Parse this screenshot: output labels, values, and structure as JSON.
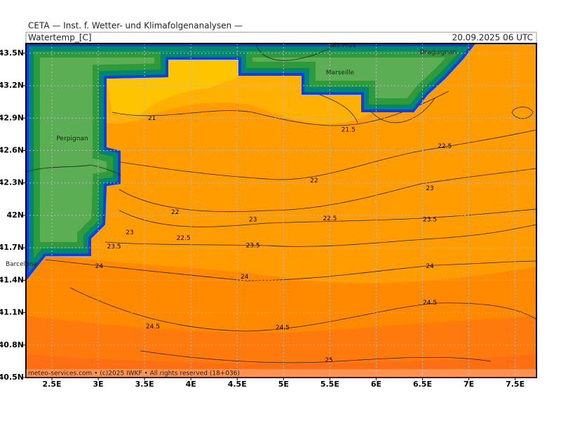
{
  "map": {
    "header": "CETA — Inst. f. Wetter- und Klimafolgenanalysen —",
    "variable": "Watertemp_[C]",
    "valid_time": "20.09.2025 06 UTC",
    "footer": "meteo-services.com • (c)2025 IWKF • All rights reserved (18+036)",
    "xlim": [
      2.22,
      7.73
    ],
    "ylim": [
      40.5,
      43.59
    ],
    "xticks": [
      {
        "value": 2.5,
        "label": "2.5E"
      },
      {
        "value": 3,
        "label": "3E"
      },
      {
        "value": 3.5,
        "label": "3.5E"
      },
      {
        "value": 4,
        "label": "4E"
      },
      {
        "value": 4.5,
        "label": "4.5E"
      },
      {
        "value": 5,
        "label": "5E"
      },
      {
        "value": 5.5,
        "label": "5.5E"
      },
      {
        "value": 6,
        "label": "6E"
      },
      {
        "value": 6.5,
        "label": "6.5E"
      },
      {
        "value": 7,
        "label": "7E"
      },
      {
        "value": 7.5,
        "label": "7.5E"
      }
    ],
    "yticks": [
      {
        "value": 40.5,
        "label": "40.5N"
      },
      {
        "value": 40.8,
        "label": "40.8N"
      },
      {
        "value": 41.1,
        "label": "41.1N"
      },
      {
        "value": 41.4,
        "label": "41.4N"
      },
      {
        "value": 41.7,
        "label": "41.7N"
      },
      {
        "value": 42,
        "label": "42N"
      },
      {
        "value": 42.3,
        "label": "42.3N"
      },
      {
        "value": 42.6,
        "label": "42.6N"
      },
      {
        "value": 42.9,
        "label": "42.9N"
      },
      {
        "value": 43.2,
        "label": "43.2N"
      },
      {
        "value": 43.5,
        "label": "43.5N"
      }
    ],
    "grid": true,
    "contour_labels": [
      {
        "value": 21,
        "lon": 3.58,
        "lat": 42.9
      },
      {
        "value": 21.5,
        "lon": 5.7,
        "lat": 42.79
      },
      {
        "value": 22.5,
        "lon": 6.74,
        "lat": 42.64
      },
      {
        "value": 22,
        "lon": 5.33,
        "lat": 42.32
      },
      {
        "value": 23,
        "lon": 6.58,
        "lat": 42.25
      },
      {
        "value": 22,
        "lon": 3.83,
        "lat": 42.03
      },
      {
        "value": 23,
        "lon": 4.67,
        "lat": 41.96
      },
      {
        "value": 22.5,
        "lon": 5.5,
        "lat": 41.97
      },
      {
        "value": 23.5,
        "lon": 6.58,
        "lat": 41.96
      },
      {
        "value": 23,
        "lon": 3.34,
        "lat": 41.84
      },
      {
        "value": 22.5,
        "lon": 3.92,
        "lat": 41.79
      },
      {
        "value": 23.5,
        "lon": 3.17,
        "lat": 41.71
      },
      {
        "value": 23.5,
        "lon": 4.67,
        "lat": 41.72
      },
      {
        "value": 24,
        "lon": 3.01,
        "lat": 41.53
      },
      {
        "value": 24,
        "lon": 6.58,
        "lat": 41.53
      },
      {
        "value": 24,
        "lon": 4.58,
        "lat": 41.43
      },
      {
        "value": 24.5,
        "lon": 6.58,
        "lat": 41.19
      },
      {
        "value": 24.5,
        "lon": 3.59,
        "lat": 40.97
      },
      {
        "value": 24.5,
        "lon": 4.99,
        "lat": 40.96
      },
      {
        "value": 25,
        "lon": 5.49,
        "lat": 40.66
      }
    ],
    "cities": [
      {
        "name": "Perpignan",
        "lon": 2.72,
        "lat": 42.71
      },
      {
        "name": "Barcelona",
        "lon": 2.17,
        "lat": 41.55
      },
      {
        "name": "Marseille",
        "lon": 5.61,
        "lat": 43.32
      },
      {
        "name": "Aix-Prov.",
        "lon": 5.65,
        "lat": 43.57
      },
      {
        "name": "Draguignan",
        "lon": 6.67,
        "lat": 43.51
      }
    ]
  }
}
